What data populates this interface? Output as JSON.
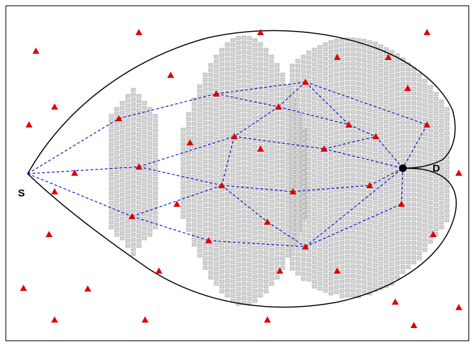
{
  "labels": {
    "source": "S",
    "destination": "D"
  },
  "colors": {
    "frame": "#000000",
    "boundary": "#000000",
    "cell_fill": "#d6d6d6",
    "cell_stroke": "#9a9a9a",
    "node": "#e00000",
    "edge": "#0000cc",
    "destination": "#000000"
  },
  "icons": {
    "node": "triangle-icon",
    "destination": "filled-circle-icon"
  }
}
